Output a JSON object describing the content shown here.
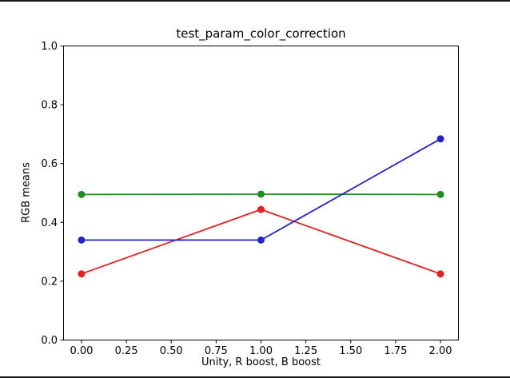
{
  "window": {
    "background": "#ffffff",
    "edge_color": "#161616"
  },
  "chart_data": {
    "type": "line",
    "title": "test_param_color_correction",
    "xlabel": "Unity, R boost, B boost",
    "ylabel": "RGB means",
    "x": [
      0.0,
      1.0,
      2.0
    ],
    "series": [
      {
        "name": "red",
        "color": "#e02222",
        "values": [
          0.225,
          0.444,
          0.225
        ]
      },
      {
        "name": "green",
        "color": "#228b22",
        "values": [
          0.495,
          0.496,
          0.495
        ]
      },
      {
        "name": "blue",
        "color": "#2323cc",
        "values": [
          0.34,
          0.34,
          0.684
        ]
      }
    ],
    "xlim": [
      -0.1,
      2.1
    ],
    "ylim": [
      0.0,
      1.0
    ],
    "x_ticks": [
      0.0,
      0.25,
      0.5,
      0.75,
      1.0,
      1.25,
      1.5,
      1.75,
      2.0
    ],
    "x_tick_labels": [
      "0.00",
      "0.25",
      "0.50",
      "0.75",
      "1.00",
      "1.25",
      "1.50",
      "1.75",
      "2.00"
    ],
    "y_ticks": [
      0.0,
      0.2,
      0.4,
      0.6,
      0.8,
      1.0
    ],
    "y_tick_labels": [
      "0.0",
      "0.2",
      "0.4",
      "0.6",
      "0.8",
      "1.0"
    ],
    "grid": false,
    "legend": "none",
    "marker": "circle",
    "axis_color": "#000000"
  }
}
